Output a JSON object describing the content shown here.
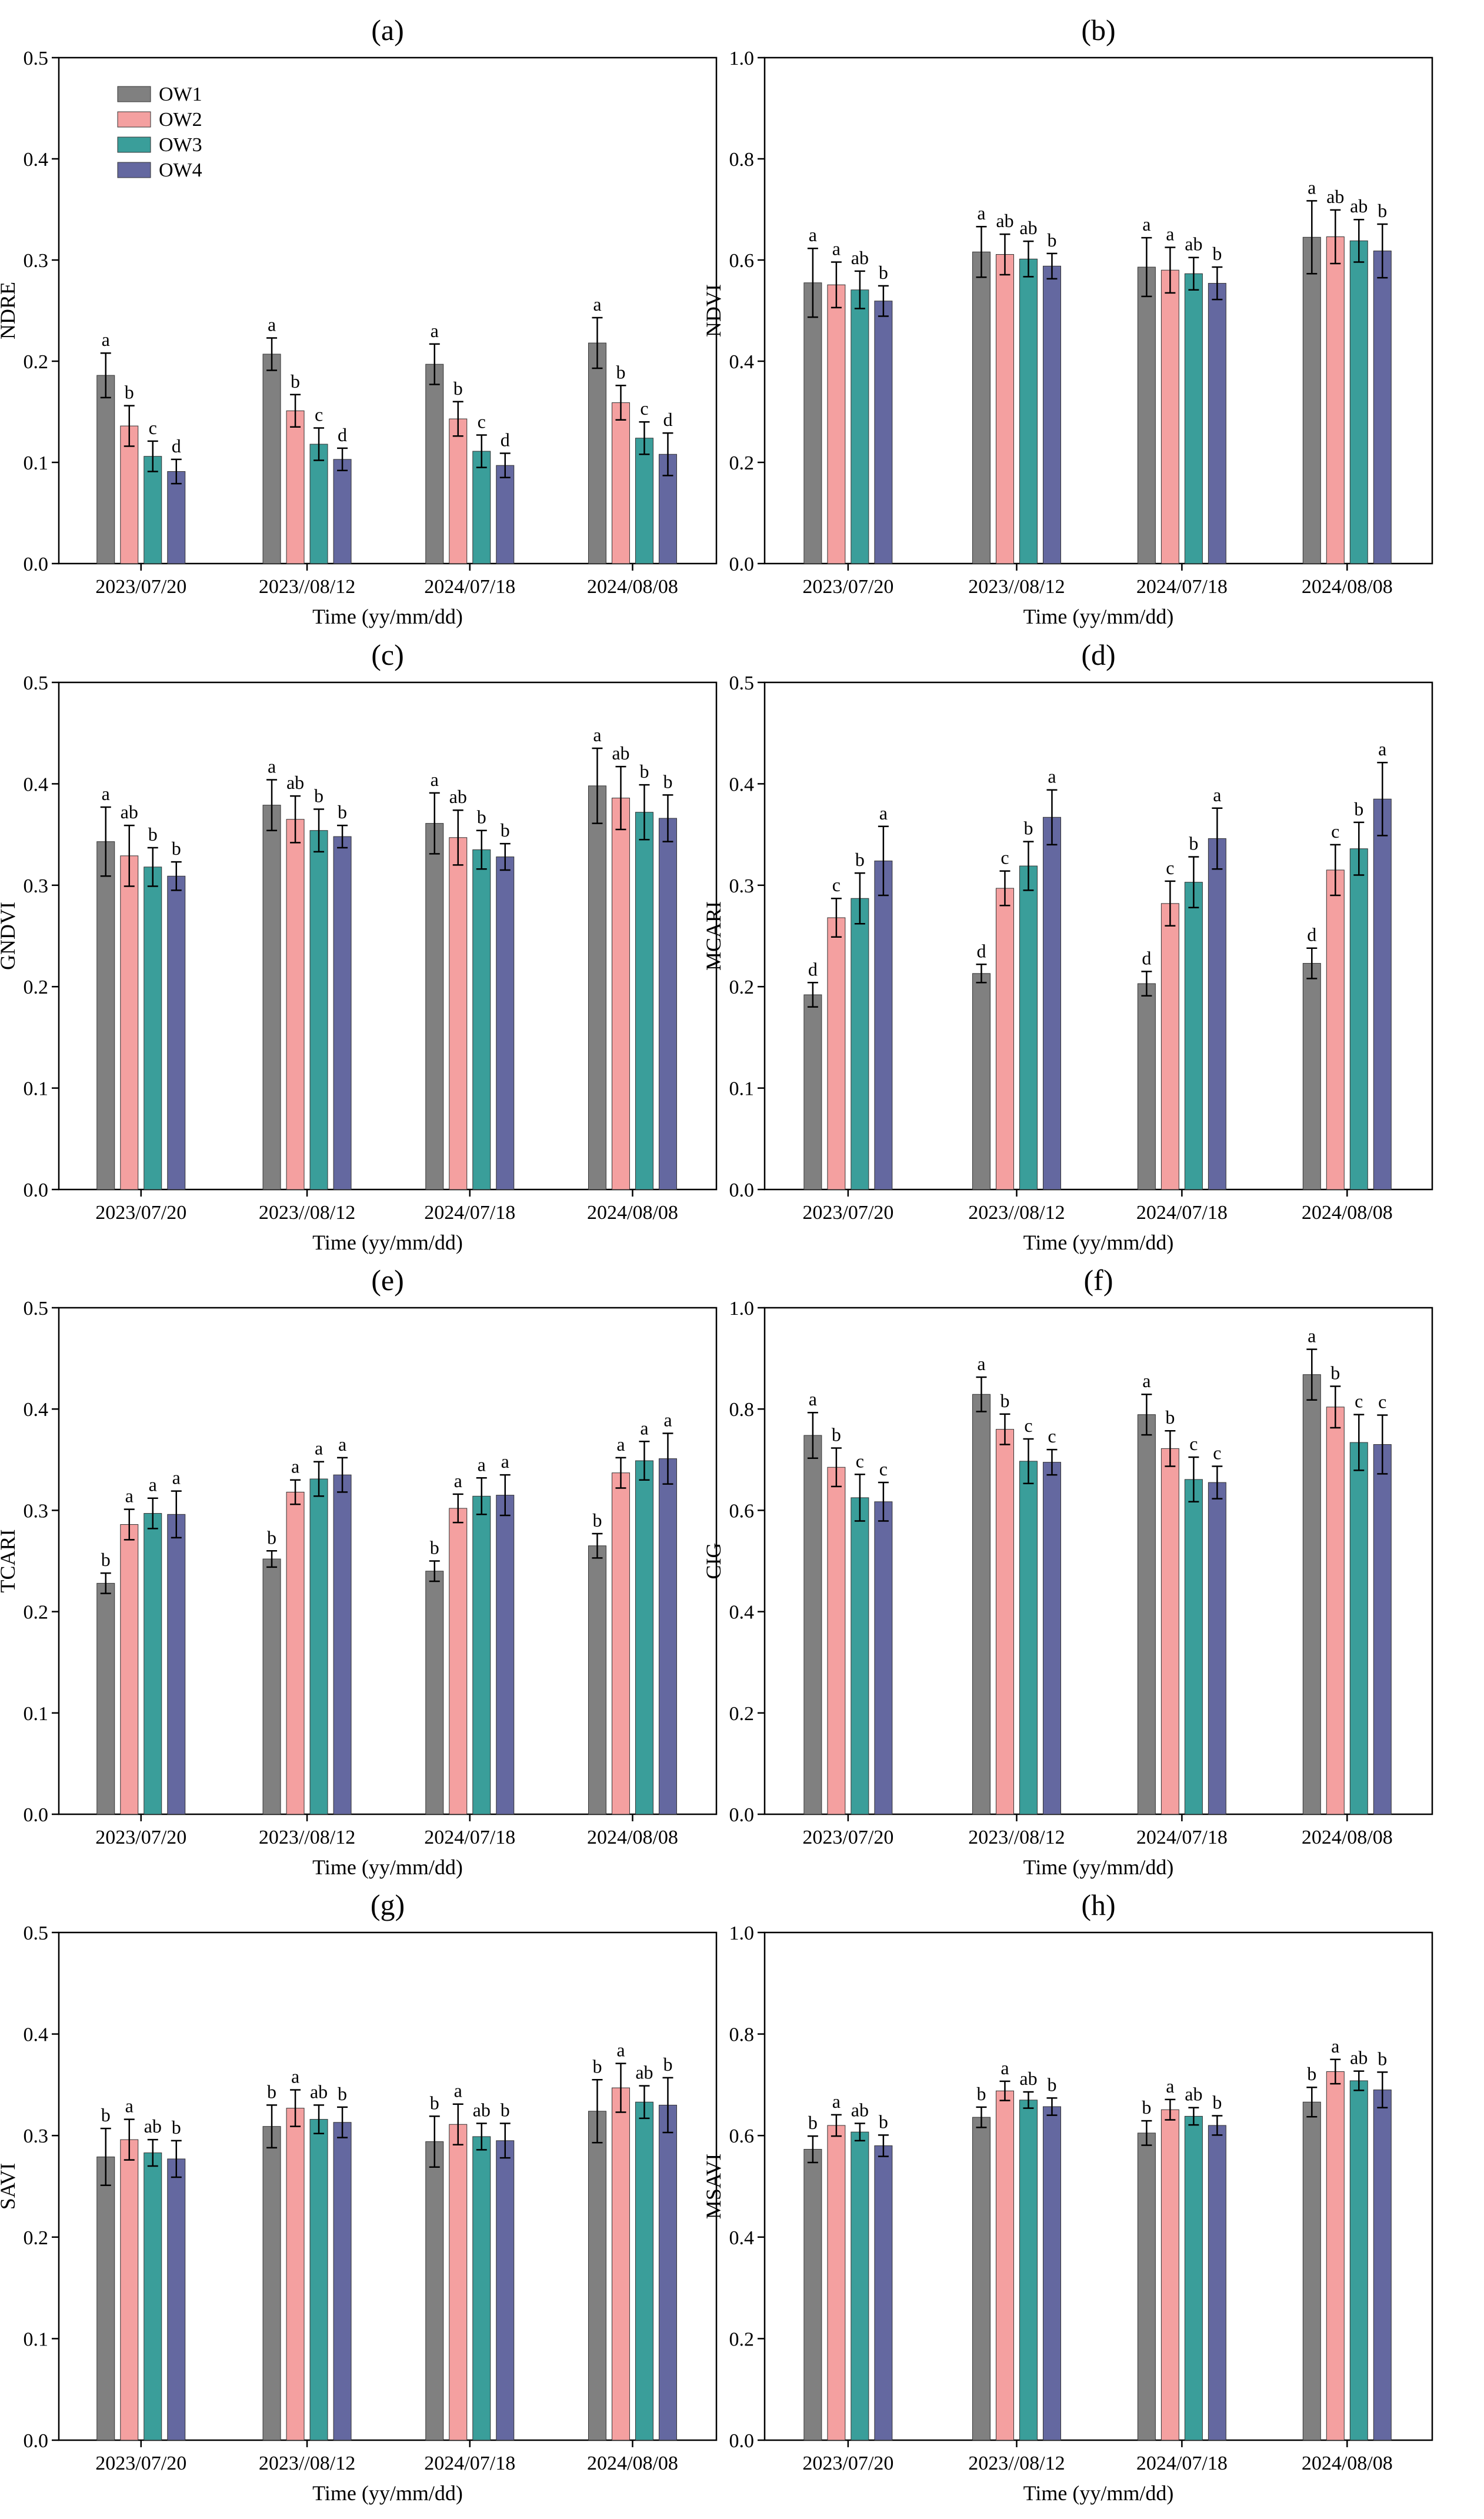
{
  "chart_data": [
    {
      "type": "bar",
      "id": "a",
      "title": "(a)",
      "xlabel": "Time (yy/mm/dd)",
      "ylabel": "NDRE",
      "ylim": [
        0,
        0.5
      ],
      "yticks": [
        0.0,
        0.1,
        0.2,
        0.3,
        0.4,
        0.5
      ],
      "ytick_labels": [
        "0.0",
        "0.1",
        "0.2",
        "0.3",
        "0.4",
        "0.5"
      ],
      "categories": [
        "2023/07/20",
        "2023//08/12",
        "2024/07/18",
        "2024/08/08"
      ],
      "legend": true,
      "series": [
        {
          "name": "OW1",
          "values": [
            0.186,
            0.207,
            0.197,
            0.218
          ],
          "errors": [
            0.022,
            0.016,
            0.02,
            0.025
          ],
          "letters": [
            "a",
            "a",
            "a",
            "a"
          ]
        },
        {
          "name": "OW2",
          "values": [
            0.136,
            0.151,
            0.143,
            0.159
          ],
          "errors": [
            0.02,
            0.016,
            0.017,
            0.017
          ],
          "letters": [
            "b",
            "b",
            "b",
            "b"
          ]
        },
        {
          "name": "OW3",
          "values": [
            0.106,
            0.118,
            0.111,
            0.124
          ],
          "errors": [
            0.015,
            0.016,
            0.016,
            0.016
          ],
          "letters": [
            "c",
            "c",
            "c",
            "c"
          ]
        },
        {
          "name": "OW4",
          "values": [
            0.091,
            0.103,
            0.097,
            0.108
          ],
          "errors": [
            0.012,
            0.011,
            0.012,
            0.021
          ],
          "letters": [
            "d",
            "d",
            "d",
            "d"
          ]
        }
      ]
    },
    {
      "type": "bar",
      "id": "b",
      "title": "(b)",
      "xlabel": "Time (yy/mm/dd)",
      "ylabel": "NDVI",
      "ylim": [
        0,
        1.0
      ],
      "yticks": [
        0.0,
        0.2,
        0.4,
        0.6,
        0.8,
        1.0
      ],
      "ytick_labels": [
        "0.0",
        "0.2",
        "0.4",
        "0.6",
        "0.8",
        "1.0"
      ],
      "categories": [
        "2023/07/20",
        "2023//08/12",
        "2024/07/18",
        "2024/08/08"
      ],
      "legend": false,
      "series": [
        {
          "name": "OW1",
          "values": [
            0.555,
            0.616,
            0.586,
            0.645
          ],
          "errors": [
            0.068,
            0.05,
            0.058,
            0.072
          ],
          "letters": [
            "a",
            "a",
            "a",
            "a"
          ]
        },
        {
          "name": "OW2",
          "values": [
            0.551,
            0.611,
            0.58,
            0.646
          ],
          "errors": [
            0.045,
            0.04,
            0.045,
            0.053
          ],
          "letters": [
            "a",
            "ab",
            "a",
            "ab"
          ]
        },
        {
          "name": "OW3",
          "values": [
            0.541,
            0.602,
            0.573,
            0.638
          ],
          "errors": [
            0.037,
            0.035,
            0.032,
            0.042
          ],
          "letters": [
            "ab",
            "ab",
            "ab",
            "ab"
          ]
        },
        {
          "name": "OW4",
          "values": [
            0.519,
            0.588,
            0.554,
            0.618
          ],
          "errors": [
            0.03,
            0.025,
            0.032,
            0.053
          ],
          "letters": [
            "b",
            "b",
            "b",
            "b"
          ]
        }
      ]
    },
    {
      "type": "bar",
      "id": "c",
      "title": "(c)",
      "xlabel": "Time (yy/mm/dd)",
      "ylabel": "GNDVI",
      "ylim": [
        0,
        0.5
      ],
      "yticks": [
        0.0,
        0.1,
        0.2,
        0.3,
        0.4,
        0.5
      ],
      "ytick_labels": [
        "0.0",
        "0.1",
        "0.2",
        "0.3",
        "0.4",
        "0.5"
      ],
      "categories": [
        "2023/07/20",
        "2023//08/12",
        "2024/07/18",
        "2024/08/08"
      ],
      "legend": false,
      "series": [
        {
          "name": "OW1",
          "values": [
            0.343,
            0.379,
            0.361,
            0.398
          ],
          "errors": [
            0.034,
            0.025,
            0.03,
            0.037
          ],
          "letters": [
            "a",
            "a",
            "a",
            "a"
          ]
        },
        {
          "name": "OW2",
          "values": [
            0.329,
            0.365,
            0.347,
            0.386
          ],
          "errors": [
            0.03,
            0.023,
            0.027,
            0.031
          ],
          "letters": [
            "ab",
            "ab",
            "ab",
            "ab"
          ]
        },
        {
          "name": "OW3",
          "values": [
            0.318,
            0.354,
            0.335,
            0.372
          ],
          "errors": [
            0.019,
            0.021,
            0.019,
            0.027
          ],
          "letters": [
            "b",
            "b",
            "b",
            "b"
          ]
        },
        {
          "name": "OW4",
          "values": [
            0.309,
            0.348,
            0.328,
            0.366
          ],
          "errors": [
            0.014,
            0.011,
            0.013,
            0.023
          ],
          "letters": [
            "b",
            "b",
            "b",
            "b"
          ]
        }
      ]
    },
    {
      "type": "bar",
      "id": "d",
      "title": "(d)",
      "xlabel": "Time (yy/mm/dd)",
      "ylabel": "MCARI",
      "ylim": [
        0,
        0.5
      ],
      "yticks": [
        0.0,
        0.1,
        0.2,
        0.3,
        0.4,
        0.5
      ],
      "ytick_labels": [
        "0.0",
        "0.1",
        "0.2",
        "0.3",
        "0.4",
        "0.5"
      ],
      "categories": [
        "2023/07/20",
        "2023//08/12",
        "2024/07/18",
        "2024/08/08"
      ],
      "legend": false,
      "series": [
        {
          "name": "OW1",
          "values": [
            0.192,
            0.213,
            0.203,
            0.223
          ],
          "errors": [
            0.012,
            0.009,
            0.012,
            0.015
          ],
          "letters": [
            "d",
            "d",
            "d",
            "d"
          ]
        },
        {
          "name": "OW2",
          "values": [
            0.268,
            0.297,
            0.282,
            0.315
          ],
          "errors": [
            0.019,
            0.017,
            0.022,
            0.025
          ],
          "letters": [
            "c",
            "c",
            "c",
            "c"
          ]
        },
        {
          "name": "OW3",
          "values": [
            0.287,
            0.319,
            0.303,
            0.336
          ],
          "errors": [
            0.025,
            0.024,
            0.025,
            0.026
          ],
          "letters": [
            "b",
            "b",
            "b",
            "b"
          ]
        },
        {
          "name": "OW4",
          "values": [
            0.324,
            0.367,
            0.346,
            0.385
          ],
          "errors": [
            0.034,
            0.027,
            0.03,
            0.036
          ],
          "letters": [
            "a",
            "a",
            "a",
            "a"
          ]
        }
      ]
    },
    {
      "type": "bar",
      "id": "e",
      "title": "(e)",
      "xlabel": "Time (yy/mm/dd)",
      "ylabel": "TCARI",
      "ylim": [
        0,
        0.5
      ],
      "yticks": [
        0.0,
        0.1,
        0.2,
        0.3,
        0.4,
        0.5
      ],
      "ytick_labels": [
        "0.0",
        "0.1",
        "0.2",
        "0.3",
        "0.4",
        "0.5"
      ],
      "categories": [
        "2023/07/20",
        "2023//08/12",
        "2024/07/18",
        "2024/08/08"
      ],
      "legend": false,
      "series": [
        {
          "name": "OW1",
          "values": [
            0.228,
            0.252,
            0.24,
            0.265
          ],
          "errors": [
            0.01,
            0.008,
            0.01,
            0.012
          ],
          "letters": [
            "b",
            "b",
            "b",
            "b"
          ]
        },
        {
          "name": "OW2",
          "values": [
            0.286,
            0.318,
            0.302,
            0.337
          ],
          "errors": [
            0.015,
            0.012,
            0.014,
            0.015
          ],
          "letters": [
            "a",
            "a",
            "a",
            "a"
          ]
        },
        {
          "name": "OW3",
          "values": [
            0.297,
            0.331,
            0.314,
            0.349
          ],
          "errors": [
            0.015,
            0.017,
            0.018,
            0.019
          ],
          "letters": [
            "a",
            "a",
            "a",
            "a"
          ]
        },
        {
          "name": "OW4",
          "values": [
            0.296,
            0.335,
            0.315,
            0.351
          ],
          "errors": [
            0.023,
            0.017,
            0.02,
            0.025
          ],
          "letters": [
            "a",
            "a",
            "a",
            "a"
          ]
        }
      ]
    },
    {
      "type": "bar",
      "id": "f",
      "title": "(f)",
      "xlabel": "Time (yy/mm/dd)",
      "ylabel": "CIG",
      "ylim": [
        0,
        1.0
      ],
      "yticks": [
        0.0,
        0.2,
        0.4,
        0.6,
        0.8,
        1.0
      ],
      "ytick_labels": [
        "0.0",
        "0.2",
        "0.4",
        "0.6",
        "0.8",
        "1.0"
      ],
      "categories": [
        "2023/07/20",
        "2023//08/12",
        "2024/07/18",
        "2024/08/08"
      ],
      "legend": false,
      "series": [
        {
          "name": "OW1",
          "values": [
            0.748,
            0.829,
            0.789,
            0.868
          ],
          "errors": [
            0.045,
            0.034,
            0.04,
            0.05
          ],
          "letters": [
            "a",
            "a",
            "a",
            "a"
          ]
        },
        {
          "name": "OW2",
          "values": [
            0.685,
            0.76,
            0.722,
            0.804
          ],
          "errors": [
            0.038,
            0.03,
            0.035,
            0.041
          ],
          "letters": [
            "b",
            "b",
            "b",
            "b"
          ]
        },
        {
          "name": "OW3",
          "values": [
            0.625,
            0.697,
            0.661,
            0.734
          ],
          "errors": [
            0.046,
            0.044,
            0.044,
            0.055
          ],
          "letters": [
            "c",
            "c",
            "c",
            "c"
          ]
        },
        {
          "name": "OW4",
          "values": [
            0.617,
            0.695,
            0.655,
            0.73
          ],
          "errors": [
            0.038,
            0.025,
            0.032,
            0.058
          ],
          "letters": [
            "c",
            "c",
            "c",
            "c"
          ]
        }
      ]
    },
    {
      "type": "bar",
      "id": "g",
      "title": "(g)",
      "xlabel": "Time (yy/mm/dd)",
      "ylabel": "SAVI",
      "ylim": [
        0,
        0.5
      ],
      "yticks": [
        0.0,
        0.1,
        0.2,
        0.3,
        0.4,
        0.5
      ],
      "ytick_labels": [
        "0.0",
        "0.1",
        "0.2",
        "0.3",
        "0.4",
        "0.5"
      ],
      "categories": [
        "2023/07/20",
        "2023//08/12",
        "2024/07/18",
        "2024/08/08"
      ],
      "legend": false,
      "series": [
        {
          "name": "OW1",
          "values": [
            0.279,
            0.309,
            0.294,
            0.324
          ],
          "errors": [
            0.028,
            0.021,
            0.025,
            0.031
          ],
          "letters": [
            "b",
            "b",
            "b",
            "b"
          ]
        },
        {
          "name": "OW2",
          "values": [
            0.296,
            0.327,
            0.311,
            0.347
          ],
          "errors": [
            0.02,
            0.018,
            0.02,
            0.024
          ],
          "letters": [
            "a",
            "a",
            "a",
            "a"
          ]
        },
        {
          "name": "OW3",
          "values": [
            0.283,
            0.316,
            0.299,
            0.333
          ],
          "errors": [
            0.013,
            0.014,
            0.013,
            0.016
          ],
          "letters": [
            "ab",
            "ab",
            "ab",
            "ab"
          ]
        },
        {
          "name": "OW4",
          "values": [
            0.277,
            0.313,
            0.295,
            0.33
          ],
          "errors": [
            0.018,
            0.015,
            0.017,
            0.027
          ],
          "letters": [
            "b",
            "b",
            "b",
            "b"
          ]
        }
      ]
    },
    {
      "type": "bar",
      "id": "h",
      "title": "(h)",
      "xlabel": "Time (yy/mm/dd)",
      "ylabel": "MSAVI",
      "ylim": [
        0,
        1.0
      ],
      "yticks": [
        0.0,
        0.2,
        0.4,
        0.6,
        0.8,
        1.0
      ],
      "ytick_labels": [
        "0.0",
        "0.2",
        "0.4",
        "0.6",
        "0.8",
        "1.0"
      ],
      "categories": [
        "2023/07/20",
        "2023//08/12",
        "2024/07/18",
        "2024/08/08"
      ],
      "legend": false,
      "series": [
        {
          "name": "OW1",
          "values": [
            0.573,
            0.636,
            0.605,
            0.666
          ],
          "errors": [
            0.026,
            0.02,
            0.024,
            0.029
          ],
          "letters": [
            "b",
            "b",
            "b",
            "b"
          ]
        },
        {
          "name": "OW2",
          "values": [
            0.62,
            0.688,
            0.651,
            0.726
          ],
          "errors": [
            0.021,
            0.019,
            0.02,
            0.024
          ],
          "letters": [
            "a",
            "a",
            "a",
            "a"
          ]
        },
        {
          "name": "OW3",
          "values": [
            0.607,
            0.67,
            0.638,
            0.708
          ],
          "errors": [
            0.017,
            0.016,
            0.017,
            0.019
          ],
          "letters": [
            "ab",
            "ab",
            "ab",
            "ab"
          ]
        },
        {
          "name": "OW4",
          "values": [
            0.58,
            0.657,
            0.62,
            0.69
          ],
          "errors": [
            0.021,
            0.017,
            0.019,
            0.035
          ],
          "letters": [
            "b",
            "b",
            "b",
            "b"
          ]
        }
      ]
    }
  ],
  "colors": {
    "OW1": "#808080",
    "OW2": "#F4A0A0",
    "OW3": "#3A9E9A",
    "OW4": "#6468A0",
    "axis": "#000000",
    "background": "#ffffff"
  }
}
